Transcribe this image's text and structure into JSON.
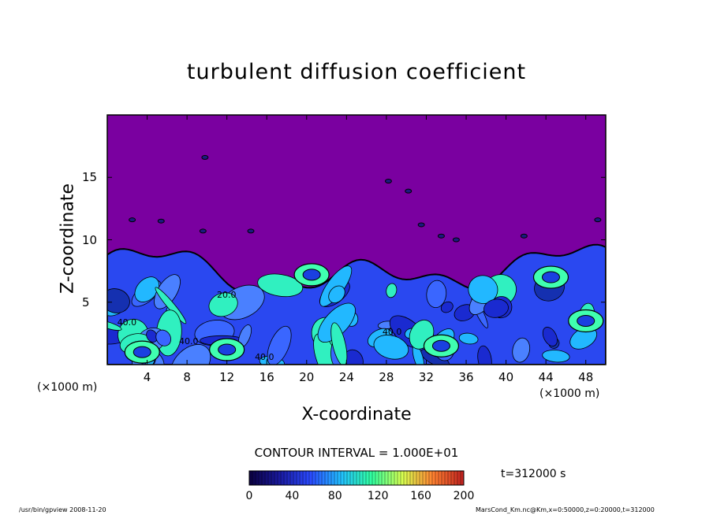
{
  "chart_data": {
    "type": "heatmap",
    "title": "turbulent diffusion coefficient",
    "xlabel": "X-coordinate",
    "ylabel": "Z-coordinate",
    "x_unit_label": "(×1000 m)",
    "x_ticks": [
      4,
      8,
      12,
      16,
      20,
      24,
      28,
      32,
      36,
      40,
      44,
      48
    ],
    "y_ticks": [
      5,
      10,
      15
    ],
    "xlim": [
      0,
      50
    ],
    "ylim": [
      0,
      20
    ],
    "contour_interval_label": "CONTOUR INTERVAL = 1.000E+01",
    "contour_labels": [
      "40.0",
      "40.0",
      "40.0",
      "40.0",
      "20.0"
    ],
    "colorbar": {
      "range": [
        0,
        200
      ],
      "ticks": [
        0,
        40,
        80,
        120,
        160,
        200
      ],
      "colors": [
        "#0a0040",
        "#1a1aa0",
        "#2a4aff",
        "#22c0ff",
        "#30ffa0",
        "#d8ff50",
        "#ff8030",
        "#c02020"
      ]
    },
    "background_color": "#7a00a0",
    "boundary_layer_top_km": 7.5,
    "time_label": "t=312000 s"
  },
  "footer": {
    "left": "/usr/bin/gpview  2008-11-20",
    "right": "MarsCond_Km.nc@Km,x=0:50000,z=0:20000,t=312000"
  }
}
